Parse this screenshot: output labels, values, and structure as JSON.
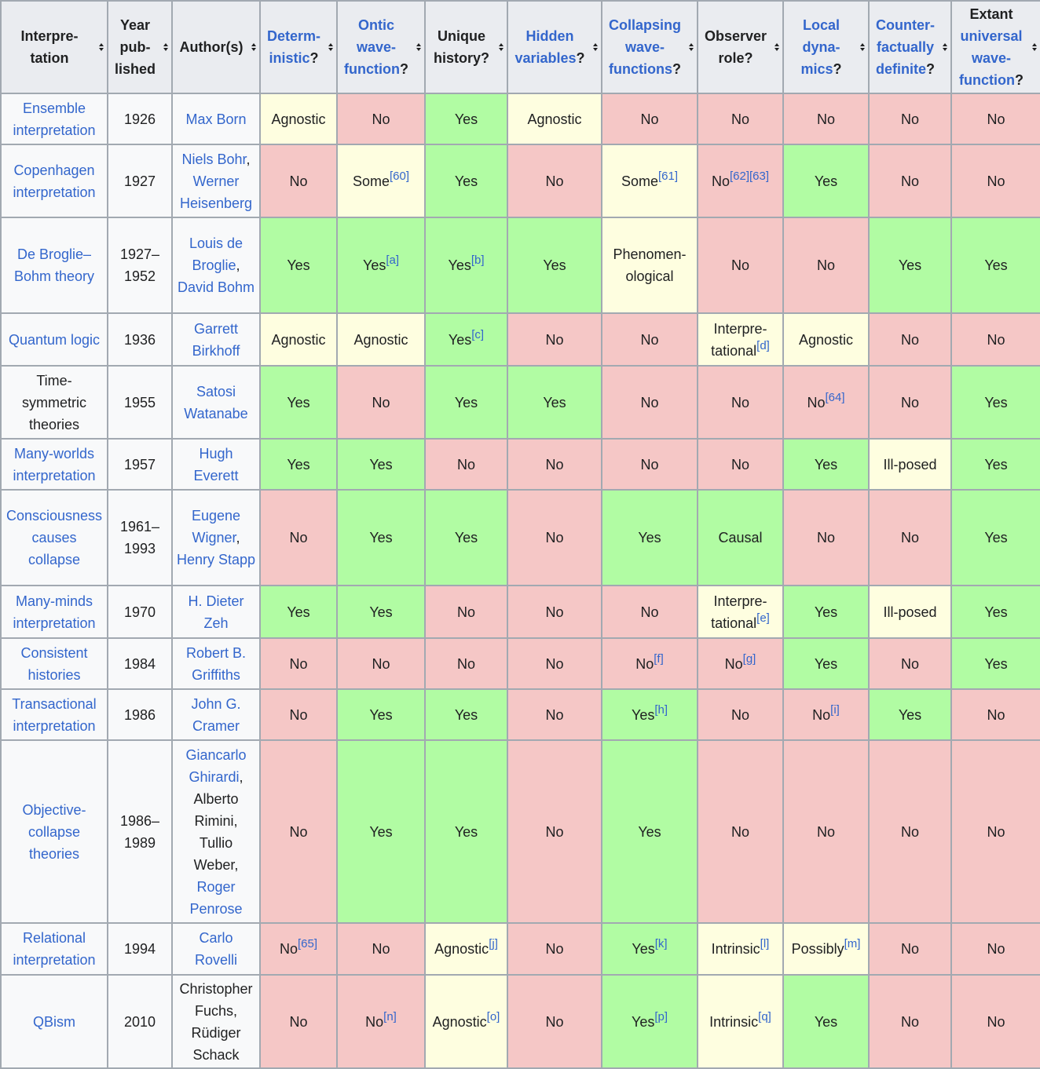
{
  "colors": {
    "y": "#b1fca3",
    "n": "#f5c7c6",
    "a": "#fefee0"
  },
  "headers": [
    {
      "link": "",
      "text": "Interpre-\ntation"
    },
    {
      "link": "",
      "text": "Year\npub-\nlished"
    },
    {
      "link": "",
      "text": "Author(s)"
    },
    {
      "link": "Determ-\ninistic",
      "text": "?"
    },
    {
      "link": "Ontic\nwave-\nfunction",
      "text": "?"
    },
    {
      "link": "",
      "text": "Unique\nhistory?"
    },
    {
      "link": "Hidden\nvariables",
      "text": "?"
    },
    {
      "link": "Collapsing\nwave-\nfunctions",
      "text": "?"
    },
    {
      "link": "",
      "text": "Observer\nrole?"
    },
    {
      "link": "Local\ndyna-\nmics",
      "text": "?"
    },
    {
      "link": "Counter-\nfactually\ndefinite",
      "text": "?"
    },
    {
      "pre": "Extant\n",
      "link": "universal\nwave-\nfunction",
      "text": "?"
    }
  ],
  "rows": [
    {
      "name": "Ensemble interpretation",
      "link": true,
      "year": "1926",
      "authors": [
        {
          "t": "Max Born",
          "l": true
        }
      ],
      "cells": [
        {
          "t": "Agnostic",
          "c": "a"
        },
        {
          "t": "No",
          "c": "n"
        },
        {
          "t": "Yes",
          "c": "y"
        },
        {
          "t": "Agnostic",
          "c": "a"
        },
        {
          "t": "No",
          "c": "n"
        },
        {
          "t": "No",
          "c": "n"
        },
        {
          "t": "No",
          "c": "n"
        },
        {
          "t": "No",
          "c": "n"
        },
        {
          "t": "No",
          "c": "n"
        }
      ]
    },
    {
      "name": "Copenhagen interpretation",
      "link": true,
      "year": "1927",
      "authors": [
        {
          "t": "Niels Bohr",
          "l": true
        },
        {
          "t": ", ",
          "l": false
        },
        {
          "t": "Werner Heisenberg",
          "l": true
        }
      ],
      "cells": [
        {
          "t": "No",
          "c": "n"
        },
        {
          "t": "Some",
          "s": "[60]",
          "c": "a"
        },
        {
          "t": "Yes",
          "c": "y"
        },
        {
          "t": "No",
          "c": "n"
        },
        {
          "t": "Some",
          "s": "[61]",
          "c": "a"
        },
        {
          "t": "No",
          "s": "[62][63]",
          "c": "n"
        },
        {
          "t": "Yes",
          "c": "y"
        },
        {
          "t": "No",
          "c": "n"
        },
        {
          "t": "No",
          "c": "n"
        }
      ]
    },
    {
      "name": "De Broglie–Bohm theory",
      "link": true,
      "year": "1927–\n1952",
      "authors": [
        {
          "t": "Louis de Broglie",
          "l": true
        },
        {
          "t": ", ",
          "l": false
        },
        {
          "t": "David Bohm",
          "l": true
        }
      ],
      "cells": [
        {
          "t": "Yes",
          "c": "y"
        },
        {
          "t": "Yes",
          "s": "[a]",
          "c": "y"
        },
        {
          "t": "Yes",
          "s": "[b]",
          "c": "y"
        },
        {
          "t": "Yes",
          "c": "y"
        },
        {
          "t": "Phenomen-\nological",
          "c": "a"
        },
        {
          "t": "No",
          "c": "n"
        },
        {
          "t": "No",
          "c": "n"
        },
        {
          "t": "Yes",
          "c": "y"
        },
        {
          "t": "Yes",
          "c": "y"
        }
      ]
    },
    {
      "name": "Quantum logic",
      "link": true,
      "year": "1936",
      "authors": [
        {
          "t": "Garrett Birkhoff",
          "l": true
        }
      ],
      "cells": [
        {
          "t": "Agnostic",
          "c": "a"
        },
        {
          "t": "Agnostic",
          "c": "a"
        },
        {
          "t": "Yes",
          "s": "[c]",
          "c": "y"
        },
        {
          "t": "No",
          "c": "n"
        },
        {
          "t": "No",
          "c": "n"
        },
        {
          "t": "Interpre-\ntational",
          "s": "[d]",
          "c": "a"
        },
        {
          "t": "Agnostic",
          "c": "a"
        },
        {
          "t": "No",
          "c": "n"
        },
        {
          "t": "No",
          "c": "n"
        }
      ]
    },
    {
      "name": "Time-\nsymmetric\ntheories",
      "link": false,
      "year": "1955",
      "authors": [
        {
          "t": "Satosi Watanabe",
          "l": true
        }
      ],
      "cells": [
        {
          "t": "Yes",
          "c": "y"
        },
        {
          "t": "No",
          "c": "n"
        },
        {
          "t": "Yes",
          "c": "y"
        },
        {
          "t": "Yes",
          "c": "y"
        },
        {
          "t": "No",
          "c": "n"
        },
        {
          "t": "No",
          "c": "n"
        },
        {
          "t": "No",
          "s": "[64]",
          "c": "n"
        },
        {
          "t": "No",
          "c": "n"
        },
        {
          "t": "Yes",
          "c": "y"
        }
      ]
    },
    {
      "name": "Many-worlds interpretation",
      "link": true,
      "year": "1957",
      "authors": [
        {
          "t": "Hugh Everett",
          "l": true
        }
      ],
      "cells": [
        {
          "t": "Yes",
          "c": "y"
        },
        {
          "t": "Yes",
          "c": "y"
        },
        {
          "t": "No",
          "c": "n"
        },
        {
          "t": "No",
          "c": "n"
        },
        {
          "t": "No",
          "c": "n"
        },
        {
          "t": "No",
          "c": "n"
        },
        {
          "t": "Yes",
          "c": "y"
        },
        {
          "t": "Ill-posed",
          "c": "a"
        },
        {
          "t": "Yes",
          "c": "y"
        }
      ]
    },
    {
      "name": "Consciousness causes collapse",
      "link": true,
      "year": "1961–\n1993",
      "authors": [
        {
          "t": "Eugene Wigner",
          "l": true
        },
        {
          "t": ", ",
          "l": false
        },
        {
          "t": "Henry Stapp",
          "l": true
        }
      ],
      "cells": [
        {
          "t": "No",
          "c": "n"
        },
        {
          "t": "Yes",
          "c": "y"
        },
        {
          "t": "Yes",
          "c": "y"
        },
        {
          "t": "No",
          "c": "n"
        },
        {
          "t": "Yes",
          "c": "y"
        },
        {
          "t": "Causal",
          "c": "y"
        },
        {
          "t": "No",
          "c": "n"
        },
        {
          "t": "No",
          "c": "n"
        },
        {
          "t": "Yes",
          "c": "y"
        }
      ]
    },
    {
      "name": "Many-minds interpretation",
      "link": true,
      "year": "1970",
      "authors": [
        {
          "t": "H. Dieter Zeh",
          "l": true
        }
      ],
      "cells": [
        {
          "t": "Yes",
          "c": "y"
        },
        {
          "t": "Yes",
          "c": "y"
        },
        {
          "t": "No",
          "c": "n"
        },
        {
          "t": "No",
          "c": "n"
        },
        {
          "t": "No",
          "c": "n"
        },
        {
          "t": "Interpre-\ntational",
          "s": "[e]",
          "c": "a"
        },
        {
          "t": "Yes",
          "c": "y"
        },
        {
          "t": "Ill-posed",
          "c": "a"
        },
        {
          "t": "Yes",
          "c": "y"
        }
      ]
    },
    {
      "name": "Consistent histories",
      "link": true,
      "year": "1984",
      "authors": [
        {
          "t": "Robert B. Griffiths",
          "l": true
        }
      ],
      "cells": [
        {
          "t": "No",
          "c": "n"
        },
        {
          "t": "No",
          "c": "n"
        },
        {
          "t": "No",
          "c": "n"
        },
        {
          "t": "No",
          "c": "n"
        },
        {
          "t": "No",
          "s": "[f]",
          "c": "n"
        },
        {
          "t": "No",
          "s": "[g]",
          "c": "n"
        },
        {
          "t": "Yes",
          "c": "y"
        },
        {
          "t": "No",
          "c": "n"
        },
        {
          "t": "Yes",
          "c": "y"
        }
      ]
    },
    {
      "name": "Transactional interpretation",
      "link": true,
      "year": "1986",
      "authors": [
        {
          "t": "John G. Cramer",
          "l": true
        }
      ],
      "cells": [
        {
          "t": "No",
          "c": "n"
        },
        {
          "t": "Yes",
          "c": "y"
        },
        {
          "t": "Yes",
          "c": "y"
        },
        {
          "t": "No",
          "c": "n"
        },
        {
          "t": "Yes",
          "s": "[h]",
          "c": "y"
        },
        {
          "t": "No",
          "c": "n"
        },
        {
          "t": "No",
          "s": "[i]",
          "c": "n"
        },
        {
          "t": "Yes",
          "c": "y"
        },
        {
          "t": "No",
          "c": "n"
        }
      ]
    },
    {
      "name": "Objective-\ncollapse\ntheories",
      "link": true,
      "year": "1986–\n1989",
      "authors": [
        {
          "t": "Giancarlo Ghirardi",
          "l": true
        },
        {
          "t": ", Alberto Rimini, Tullio Weber, ",
          "l": false
        },
        {
          "t": "Roger Penrose",
          "l": true
        }
      ],
      "cells": [
        {
          "t": "No",
          "c": "n"
        },
        {
          "t": "Yes",
          "c": "y"
        },
        {
          "t": "Yes",
          "c": "y"
        },
        {
          "t": "No",
          "c": "n"
        },
        {
          "t": "Yes",
          "c": "y"
        },
        {
          "t": "No",
          "c": "n"
        },
        {
          "t": "No",
          "c": "n"
        },
        {
          "t": "No",
          "c": "n"
        },
        {
          "t": "No",
          "c": "n"
        }
      ]
    },
    {
      "name": "Relational interpretation",
      "link": true,
      "year": "1994",
      "authors": [
        {
          "t": "Carlo Rovelli",
          "l": true
        }
      ],
      "cells": [
        {
          "t": "No",
          "s": "[65]",
          "c": "n"
        },
        {
          "t": "No",
          "c": "n"
        },
        {
          "t": "Agnostic",
          "s": "[j]",
          "c": "a"
        },
        {
          "t": "No",
          "c": "n"
        },
        {
          "t": "Yes",
          "s": "[k]",
          "c": "y"
        },
        {
          "t": "Intrinsic",
          "s": "[l]",
          "c": "a"
        },
        {
          "t": "Possibly",
          "s": "[m]",
          "c": "a"
        },
        {
          "t": "No",
          "c": "n"
        },
        {
          "t": "No",
          "c": "n"
        }
      ]
    },
    {
      "name": "QBism",
      "link": true,
      "year": "2010",
      "authors": [
        {
          "t": "Christopher Fuchs, Rüdiger Schack",
          "l": false
        }
      ],
      "cells": [
        {
          "t": "No",
          "c": "n"
        },
        {
          "t": "No",
          "s": "[n]",
          "c": "n"
        },
        {
          "t": "Agnostic",
          "s": "[o]",
          "c": "a"
        },
        {
          "t": "No",
          "c": "n"
        },
        {
          "t": "Yes",
          "s": "[p]",
          "c": "y"
        },
        {
          "t": "Intrinsic",
          "s": "[q]",
          "c": "a"
        },
        {
          "t": "Yes",
          "c": "y"
        },
        {
          "t": "No",
          "c": "n"
        },
        {
          "t": "No",
          "c": "n"
        }
      ]
    }
  ]
}
